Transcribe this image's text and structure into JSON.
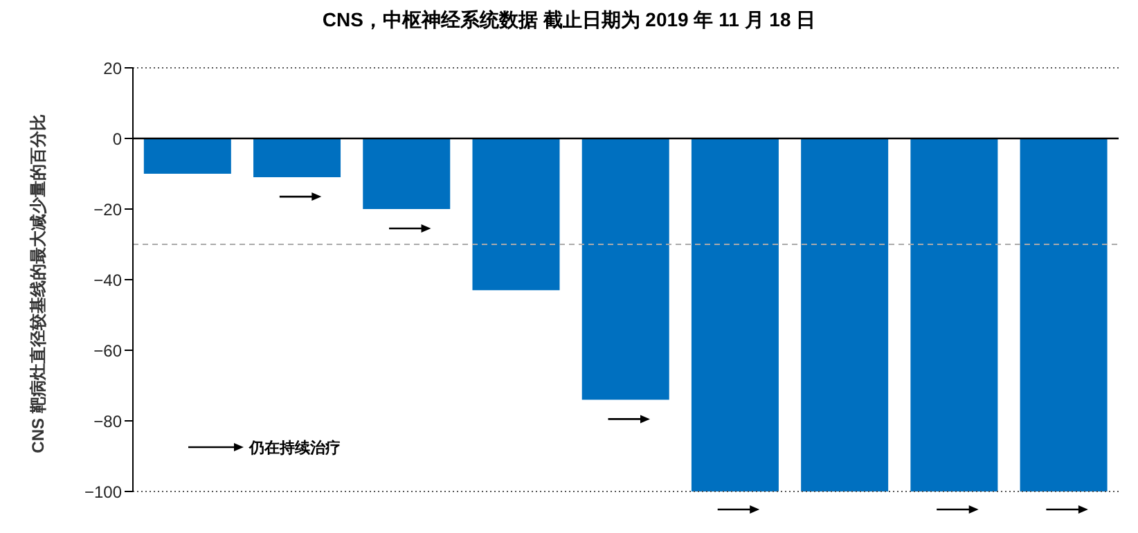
{
  "chart_data": {
    "type": "bar",
    "title": "CNS，中枢神经系统数据 截止日期为 2019 年 11 月 18 日",
    "ylabel": "CNS 靶病灶直径较基线的最大减少量的百分比",
    "categories": [
      null,
      null,
      null,
      null,
      null,
      null,
      null,
      null,
      null
    ],
    "values": [
      -10,
      -11,
      -20,
      -43,
      -74,
      -100,
      -100,
      -100,
      -100
    ],
    "color": "#0070c0",
    "ylim": [
      -100,
      20
    ],
    "yticks": [
      20,
      0,
      -20,
      -40,
      -60,
      -80,
      -100
    ],
    "grid": false,
    "legend": false,
    "ref_lines": [
      {
        "axis": "y",
        "value": 20,
        "color": "#555555",
        "line_style": "dotted"
      },
      {
        "axis": "y",
        "value": 0,
        "color": "#000000",
        "line_style": "solid"
      },
      {
        "axis": "y",
        "value": -30,
        "color": "#aaaaaa",
        "line_style": "dashed"
      },
      {
        "axis": "y",
        "value": -100,
        "color": "#555555",
        "line_style": "dotted"
      }
    ],
    "annotations": [
      "仍在持续治疗"
    ]
  }
}
